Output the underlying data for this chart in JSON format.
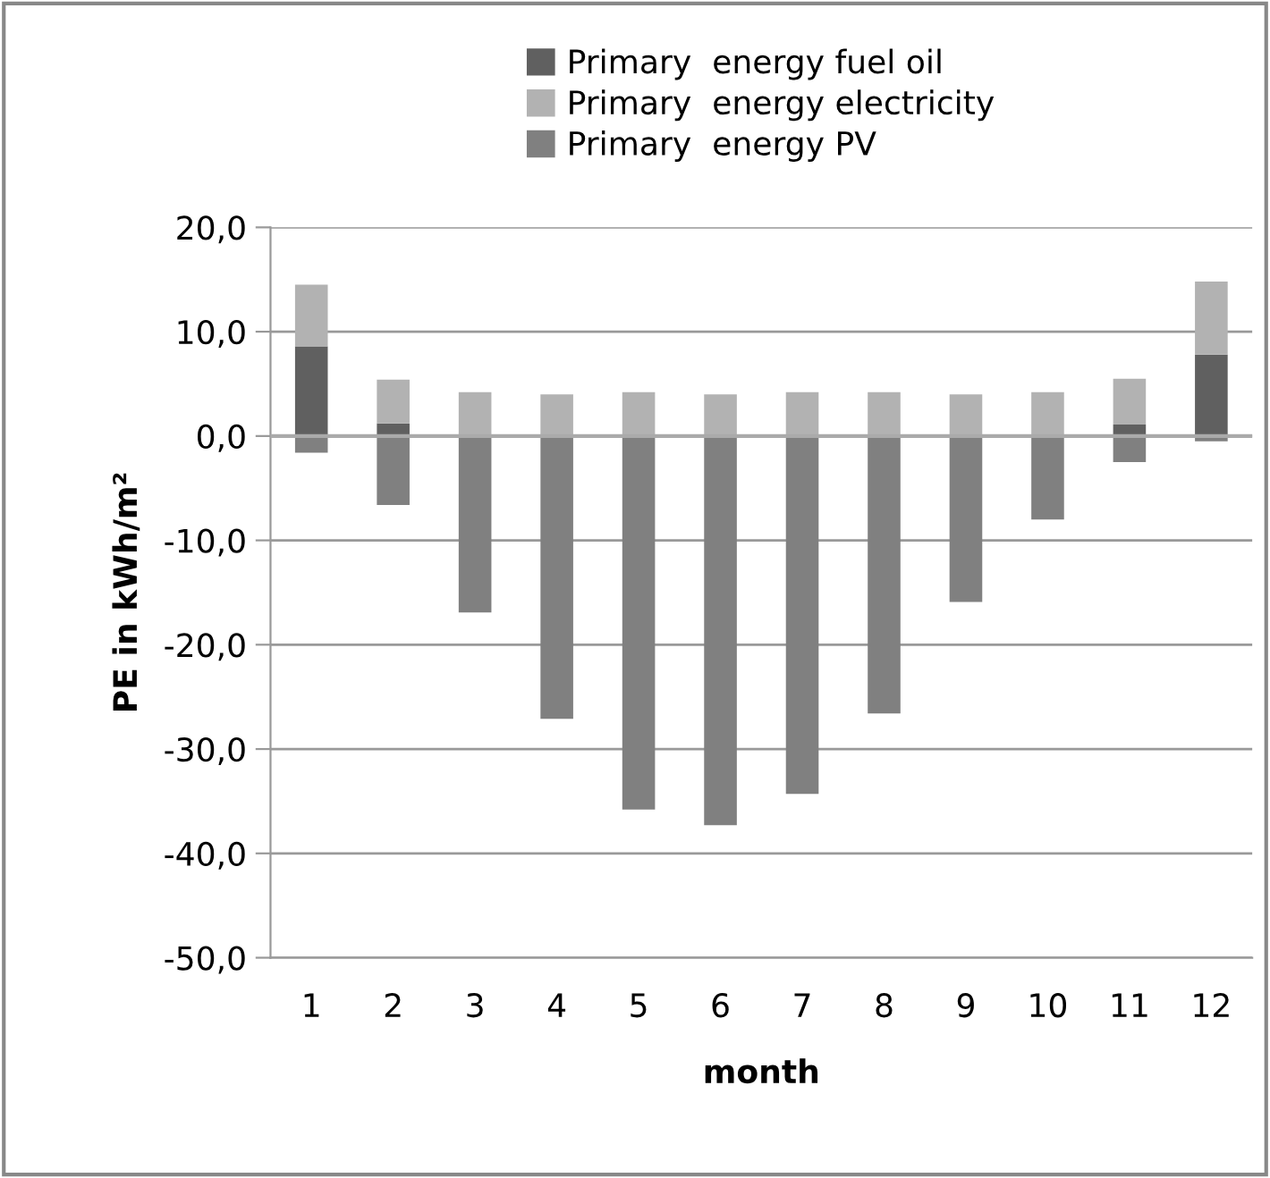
{
  "chart_data": {
    "type": "bar",
    "stacked": true,
    "xlabel": "month",
    "ylabel": "PE in kWh/m²",
    "categories": [
      "1",
      "2",
      "3",
      "4",
      "5",
      "6",
      "7",
      "8",
      "9",
      "10",
      "11",
      "12"
    ],
    "series": [
      {
        "name": "Primary  energy fuel oil",
        "color": "#606060",
        "values": [
          8.6,
          1.2,
          0,
          0,
          0,
          0,
          0,
          0,
          0,
          0,
          1.1,
          7.8
        ]
      },
      {
        "name": "Primary  energy electricity",
        "color": "#b2b2b2",
        "values": [
          5.9,
          4.2,
          4.2,
          4.0,
          4.2,
          4.0,
          4.2,
          4.2,
          4.0,
          4.2,
          4.4,
          7.0
        ]
      },
      {
        "name": "Primary  energy PV",
        "color": "#808080",
        "values": [
          -1.6,
          -6.6,
          -16.9,
          -27.1,
          -35.8,
          -37.3,
          -34.3,
          -26.6,
          -15.9,
          -8.0,
          -2.5,
          -0.5
        ]
      }
    ],
    "ylim": [
      -50,
      20
    ],
    "yticks": [
      {
        "value": -50,
        "label": "-50,0"
      },
      {
        "value": -40,
        "label": "-40,0"
      },
      {
        "value": -30,
        "label": "-30,0"
      },
      {
        "value": -20,
        "label": "-20,0"
      },
      {
        "value": -10,
        "label": "-10,0"
      },
      {
        "value": 0,
        "label": "0,0"
      },
      {
        "value": 10,
        "label": "10,0"
      },
      {
        "value": 20,
        "label": "20,0"
      }
    ],
    "grid": "y",
    "legend": "top"
  }
}
